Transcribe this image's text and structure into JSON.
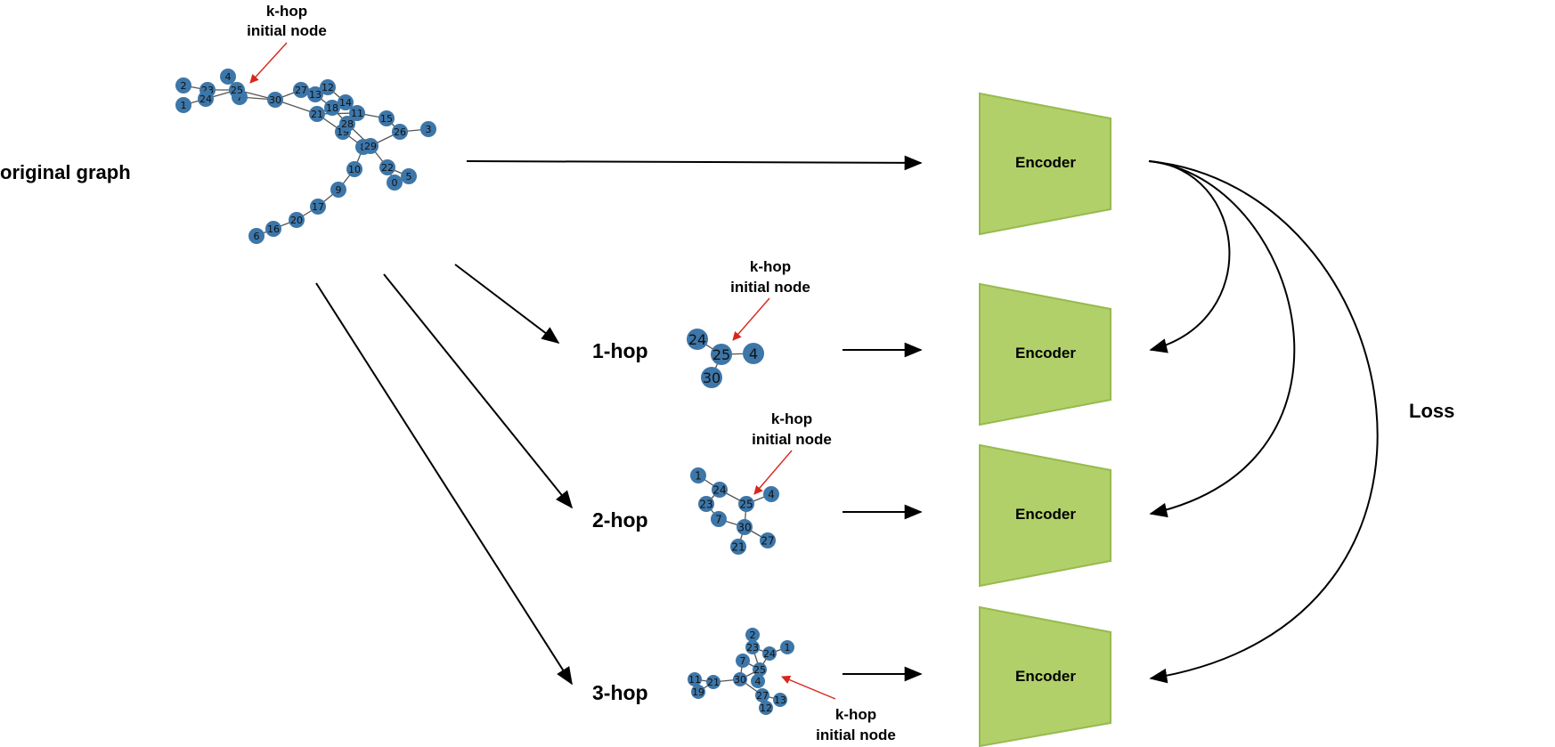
{
  "original_label": "original graph",
  "hop_labels": [
    "1-hop",
    "2-hop",
    "3-hop"
  ],
  "encoder_label": "Encoder",
  "loss_label": "Loss",
  "annotation": {
    "line1": "k-hop",
    "line2": "initial node"
  },
  "colors": {
    "node": "#3d76a8",
    "encoder_fill": "#b1d06a",
    "encoder_stroke": "#96bb4e",
    "annotation_arrow": "#d9261c",
    "arrow": "#000000"
  },
  "graphs": {
    "original": {
      "nodes": [
        "0",
        "1",
        "2",
        "3",
        "4",
        "5",
        "6",
        "7",
        "8",
        "9",
        "10",
        "11",
        "12",
        "13",
        "14",
        "15",
        "16",
        "17",
        "18",
        "19",
        "20",
        "21",
        "22",
        "23",
        "24",
        "25",
        "26",
        "27",
        "28",
        "29",
        "30"
      ]
    },
    "hop1": {
      "nodes": [
        "24",
        "25",
        "4",
        "30"
      ]
    },
    "hop2": {
      "nodes": [
        "1",
        "24",
        "4",
        "23",
        "25",
        "7",
        "30",
        "21",
        "27"
      ]
    },
    "hop3": {
      "nodes": [
        "2",
        "23",
        "1",
        "24",
        "7",
        "25",
        "11",
        "21",
        "30",
        "4",
        "19",
        "27",
        "13",
        "12"
      ]
    }
  }
}
